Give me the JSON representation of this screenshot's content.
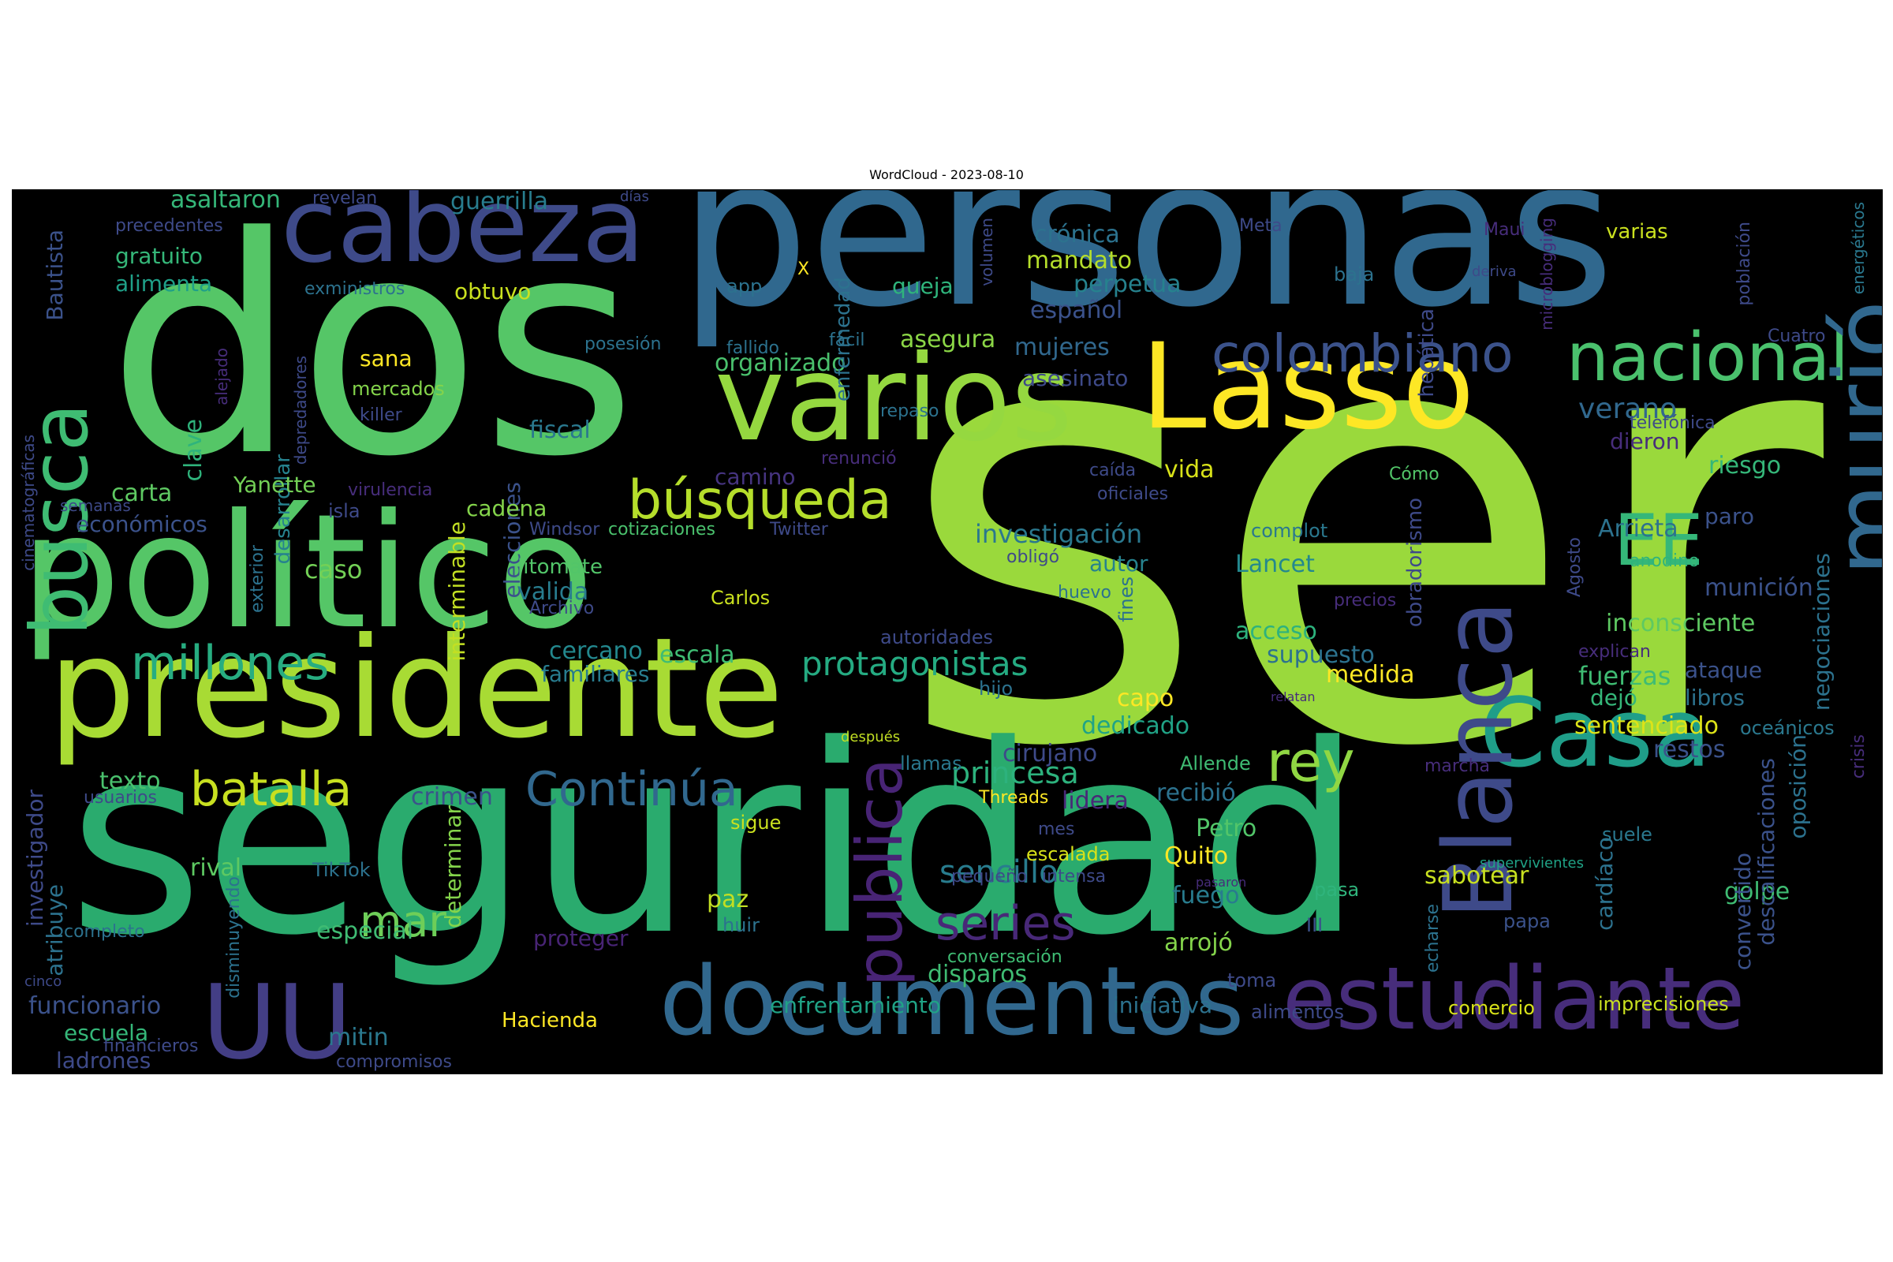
{
  "title": "WordCloud - 2023-08-10",
  "palette": "viridis",
  "words": [
    {
      "text": "ser",
      "color": "#9ad93c"
    },
    {
      "text": "seguridad",
      "color": "#2aab6e"
    },
    {
      "text": "personas",
      "color": "#30688e"
    },
    {
      "text": "dos",
      "color": "#55c667"
    },
    {
      "text": "político",
      "color": "#55c667"
    },
    {
      "text": "presidente",
      "color": "#a8db34"
    },
    {
      "text": "varios",
      "color": "#95d840"
    },
    {
      "text": "Lasso",
      "color": "#fde725"
    },
    {
      "text": "cabeza",
      "color": "#3e4a89"
    },
    {
      "text": "documentos",
      "color": "#31688e"
    },
    {
      "text": "estudiante",
      "color": "#472d7b"
    },
    {
      "text": "Casa",
      "color": "#1f9e89"
    },
    {
      "text": "Blanca",
      "color": "#3e4a89"
    },
    {
      "text": "nacional",
      "color": "#4ac16d"
    },
    {
      "text": "murió",
      "color": "#31688e"
    },
    {
      "text": "UU",
      "color": "#433e85"
    },
    {
      "text": "busca",
      "color": "#3fbc73"
    },
    {
      "text": "EE",
      "color": "#35b779"
    },
    {
      "text": "colombiano",
      "color": "#3b528b"
    },
    {
      "text": "búsqueda",
      "color": "#b5de2b"
    },
    {
      "text": "millones",
      "color": "#27ad81"
    },
    {
      "text": "batalla",
      "color": "#c8e020"
    },
    {
      "text": "Continúa",
      "color": "#31688e"
    },
    {
      "text": "protagonistas",
      "color": "#25ab82"
    },
    {
      "text": "publica",
      "color": "#482475"
    },
    {
      "text": "rey",
      "color": "#90d743"
    },
    {
      "text": "mar",
      "color": "#6ece58"
    },
    {
      "text": "series",
      "color": "#482878"
    },
    {
      "text": "princesa",
      "color": "#2db27d"
    },
    {
      "text": "sencillo",
      "color": "#287c8e"
    },
    {
      "text": "asaltaron",
      "color": "#35b779"
    },
    {
      "text": "guerrilla",
      "color": "#287d8e"
    },
    {
      "text": "gratuito",
      "color": "#35b779"
    },
    {
      "text": "alimenta",
      "color": "#1fa088"
    },
    {
      "text": "obtuvo",
      "color": "#cae11f"
    },
    {
      "text": "crónica",
      "color": "#2c728e"
    },
    {
      "text": "mandato",
      "color": "#b5de2b"
    },
    {
      "text": "perpetua",
      "color": "#26828e"
    },
    {
      "text": "queja",
      "color": "#2fb47c"
    },
    {
      "text": "español",
      "color": "#3b528b"
    },
    {
      "text": "sana",
      "color": "#fde725"
    },
    {
      "text": "mercados",
      "color": "#84d44b"
    },
    {
      "text": "killer",
      "color": "#3e4a89"
    },
    {
      "text": "clave",
      "color": "#2fb47c"
    },
    {
      "text": "desarrollar",
      "color": "#26828e"
    },
    {
      "text": "elecciones",
      "color": "#3b528b"
    },
    {
      "text": "fiscal",
      "color": "#2a788e"
    },
    {
      "text": "asegura",
      "color": "#8bd646"
    },
    {
      "text": "organizado",
      "color": "#4ac16d"
    },
    {
      "text": "mujeres",
      "color": "#31688e"
    },
    {
      "text": "asesinato",
      "color": "#3e4a89"
    },
    {
      "text": "verano",
      "color": "#31688e"
    },
    {
      "text": "dieron",
      "color": "#472d7b"
    },
    {
      "text": "riesgo",
      "color": "#35b779"
    },
    {
      "text": "camino",
      "color": "#463480"
    },
    {
      "text": "vida",
      "color": "#d8e219"
    },
    {
      "text": "carta",
      "color": "#5ec962"
    },
    {
      "text": "Yanette",
      "color": "#73d056"
    },
    {
      "text": "cadena",
      "color": "#84d44b"
    },
    {
      "text": "económicos",
      "color": "#3b528b"
    },
    {
      "text": "investigación",
      "color": "#2a788e"
    },
    {
      "text": "autor",
      "color": "#26828e"
    },
    {
      "text": "Lancet",
      "color": "#23888e"
    },
    {
      "text": "Arrieta",
      "color": "#2c728e"
    },
    {
      "text": "paro",
      "color": "#3b528b"
    },
    {
      "text": "munición",
      "color": "#3b528b"
    },
    {
      "text": "caso",
      "color": "#73d056"
    },
    {
      "text": "valida",
      "color": "#287c8e"
    },
    {
      "text": "inconsciente",
      "color": "#5ec962"
    },
    {
      "text": "acceso",
      "color": "#2db27d"
    },
    {
      "text": "supuesto",
      "color": "#2c728e"
    },
    {
      "text": "fuerzas",
      "color": "#3fbc73"
    },
    {
      "text": "interminable",
      "color": "#c2df23"
    },
    {
      "text": "cercano",
      "color": "#23888e"
    },
    {
      "text": "escala",
      "color": "#3fbc73"
    },
    {
      "text": "familiares",
      "color": "#287c8e"
    },
    {
      "text": "medida",
      "color": "#fde725"
    },
    {
      "text": "ataque",
      "color": "#3b528b"
    },
    {
      "text": "dejó",
      "color": "#35b779"
    },
    {
      "text": "libros",
      "color": "#2c728e"
    },
    {
      "text": "capo",
      "color": "#fde725"
    },
    {
      "text": "dedicado",
      "color": "#20a386"
    },
    {
      "text": "sentenciado",
      "color": "#dde318"
    },
    {
      "text": "restos",
      "color": "#3b528b"
    },
    {
      "text": "cirujano",
      "color": "#3e4a89"
    },
    {
      "text": "texto",
      "color": "#4ac16d"
    },
    {
      "text": "crimen",
      "color": "#3b528b"
    },
    {
      "text": "lidera",
      "color": "#482878"
    },
    {
      "text": "recibió",
      "color": "#2c728e"
    },
    {
      "text": "Petro",
      "color": "#52c569"
    },
    {
      "text": "Quito",
      "color": "#fde725"
    },
    {
      "text": "sabotear",
      "color": "#c8e020"
    },
    {
      "text": "golpe",
      "color": "#3fbc73"
    },
    {
      "text": "rival",
      "color": "#5ec962"
    },
    {
      "text": "paz",
      "color": "#c2df23"
    },
    {
      "text": "especial",
      "color": "#3fbc73"
    },
    {
      "text": "proteger",
      "color": "#482475"
    },
    {
      "text": "fuego",
      "color": "#287c8e"
    },
    {
      "text": "arrojó",
      "color": "#84d44b"
    },
    {
      "text": "disparos",
      "color": "#3fbc73"
    },
    {
      "text": "funcionario",
      "color": "#3b528b"
    },
    {
      "text": "escuela",
      "color": "#35b779"
    },
    {
      "text": "mitin",
      "color": "#2a788e"
    },
    {
      "text": "enfrentamiento",
      "color": "#20a386"
    },
    {
      "text": "iniciativa",
      "color": "#2c728e"
    },
    {
      "text": "ladrones",
      "color": "#3e4a89"
    },
    {
      "text": "Hacienda",
      "color": "#fde725"
    },
    {
      "text": "descalificaciones",
      "color": "#3b528b"
    },
    {
      "text": "oposición",
      "color": "#2c728e"
    },
    {
      "text": "convertido",
      "color": "#3b528b"
    },
    {
      "text": "negociaciones",
      "color": "#2c728e"
    },
    {
      "text": "investigador",
      "color": "#3e4a89"
    },
    {
      "text": "atribuye",
      "color": "#2c728e"
    },
    {
      "text": "Bautista",
      "color": "#3b528b"
    },
    {
      "text": "determinar",
      "color": "#84d44b"
    },
    {
      "text": "obradorismo",
      "color": "#3e4a89"
    },
    {
      "text": "hepática",
      "color": "#3e4a89"
    },
    {
      "text": "enfermedad",
      "color": "#2c728e"
    },
    {
      "text": "varias",
      "color": "#cae11f"
    },
    {
      "text": "cardíaco",
      "color": "#2c728e"
    },
    {
      "text": "imprecisiones",
      "color": "#cae11f"
    },
    {
      "text": "comercio",
      "color": "#d8e219"
    },
    {
      "text": "alimentos",
      "color": "#3e4a89"
    },
    {
      "text": "toma",
      "color": "#3e4a89"
    },
    {
      "text": "pasa",
      "color": "#2fb47c"
    },
    {
      "text": "papa",
      "color": "#3b528b"
    },
    {
      "text": "III",
      "color": "#3b528b"
    },
    {
      "text": "suele",
      "color": "#2a788e"
    },
    {
      "text": "supervivientes",
      "color": "#20a386"
    },
    {
      "text": "conversación",
      "color": "#3fbc73"
    },
    {
      "text": "escalada",
      "color": "#d8e219"
    },
    {
      "text": "mes",
      "color": "#3e4a89"
    },
    {
      "text": "intensa",
      "color": "#3e4a89"
    },
    {
      "text": "pequeño",
      "color": "#3e4a89"
    },
    {
      "text": "huir",
      "color": "#2c728e"
    },
    {
      "text": "sigue",
      "color": "#cae11f"
    },
    {
      "text": "llamas",
      "color": "#2a788e"
    },
    {
      "text": "Threads",
      "color": "#fde725"
    },
    {
      "text": "Allende",
      "color": "#3fbc73"
    },
    {
      "text": "marcha",
      "color": "#472d7b"
    },
    {
      "text": "después",
      "color": "#c2df23"
    },
    {
      "text": "hijo",
      "color": "#2c728e"
    },
    {
      "text": "autoridades",
      "color": "#3e4a89"
    },
    {
      "text": "fines",
      "color": "#2c728e"
    },
    {
      "text": "huevo",
      "color": "#2c728e"
    },
    {
      "text": "precios",
      "color": "#472d7b"
    },
    {
      "text": "explican",
      "color": "#472d7b"
    },
    {
      "text": "relatan",
      "color": "#472d7b"
    },
    {
      "text": "TikTok",
      "color": "#2c728e"
    },
    {
      "text": "usuarios",
      "color": "#3e4a89"
    },
    {
      "text": "completo",
      "color": "#2c728e"
    },
    {
      "text": "cinco",
      "color": "#3e4a89"
    },
    {
      "text": "disminuyendo",
      "color": "#2c728e"
    },
    {
      "text": "financieros",
      "color": "#3e4a89"
    },
    {
      "text": "compromisos",
      "color": "#3e4a89"
    },
    {
      "text": "jitomate",
      "color": "#52c569"
    },
    {
      "text": "Carlos",
      "color": "#cae11f"
    },
    {
      "text": "Archivo",
      "color": "#3e4a89"
    },
    {
      "text": "Windsor",
      "color": "#3e4a89"
    },
    {
      "text": "cotizaciones",
      "color": "#4ac16d"
    },
    {
      "text": "Twitter",
      "color": "#3e4a89"
    },
    {
      "text": "obligó",
      "color": "#3e4a89"
    },
    {
      "text": "complot",
      "color": "#2a788e"
    },
    {
      "text": "anodino",
      "color": "#2fb47c"
    },
    {
      "text": "Agosto",
      "color": "#3e4a89"
    },
    {
      "text": "oceánicos",
      "color": "#2a788e"
    },
    {
      "text": "crisis",
      "color": "#472d7b"
    },
    {
      "text": "exterior",
      "color": "#2c728e"
    },
    {
      "text": "isla",
      "color": "#3e4a89"
    },
    {
      "text": "virulencia",
      "color": "#472d7b"
    },
    {
      "text": "semanas",
      "color": "#3e4a89"
    },
    {
      "text": "cinematográficas",
      "color": "#3e4a89"
    },
    {
      "text": "renunció",
      "color": "#472d7b"
    },
    {
      "text": "repaso",
      "color": "#2c728e"
    },
    {
      "text": "caída",
      "color": "#3e4a89"
    },
    {
      "text": "oficiales",
      "color": "#3e4a89"
    },
    {
      "text": "Cómo",
      "color": "#52c569"
    },
    {
      "text": "telefónica",
      "color": "#3e4a89"
    },
    {
      "text": "población",
      "color": "#3e4a89"
    },
    {
      "text": "Cuatro",
      "color": "#3e4a89"
    },
    {
      "text": "microblogging",
      "color": "#472d7b"
    },
    {
      "text": "energéticos",
      "color": "#2a788e"
    },
    {
      "text": "deriva",
      "color": "#3e4a89"
    },
    {
      "text": "Maui",
      "color": "#472d7b"
    },
    {
      "text": "baja",
      "color": "#2c728e"
    },
    {
      "text": "Meta",
      "color": "#3e4a89"
    },
    {
      "text": "volumen",
      "color": "#3e4a89"
    },
    {
      "text": "días",
      "color": "#3e4a89"
    },
    {
      "text": "revelan",
      "color": "#3e4a89"
    },
    {
      "text": "app",
      "color": "#2c728e"
    },
    {
      "text": "X",
      "color": "#fde725"
    },
    {
      "text": "precedentes",
      "color": "#3e4a89"
    },
    {
      "text": "exministros",
      "color": "#2c728e"
    },
    {
      "text": "posesión",
      "color": "#2c728e"
    },
    {
      "text": "fallido",
      "color": "#2c728e"
    },
    {
      "text": "fácil",
      "color": "#2c728e"
    },
    {
      "text": "alejado",
      "color": "#472d7b"
    },
    {
      "text": "depredadores",
      "color": "#3e4a89"
    },
    {
      "text": "pasaron",
      "color": "#472d7b"
    },
    {
      "text": "echarse",
      "color": "#2c728e"
    }
  ]
}
